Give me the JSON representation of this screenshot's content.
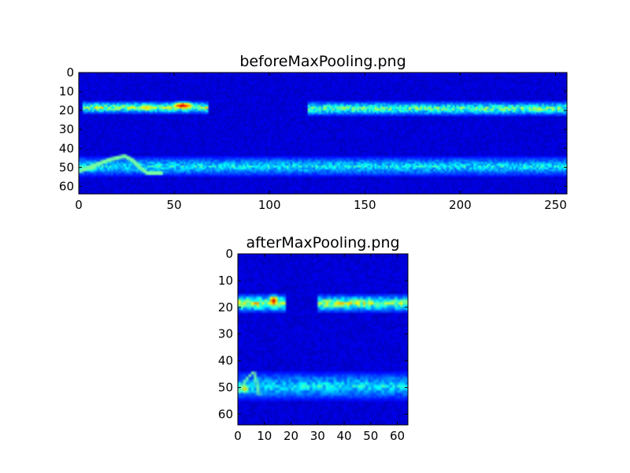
{
  "chart_data": [
    {
      "type": "heatmap",
      "title": "beforeMaxPooling.png",
      "xlabel": "",
      "ylabel": "",
      "xlim": [
        0,
        256
      ],
      "ylim": [
        64,
        0
      ],
      "x_ticks": [
        "0",
        "50",
        "100",
        "150",
        "200",
        "250"
      ],
      "y_ticks": [
        "0",
        "10",
        "20",
        "30",
        "40",
        "50",
        "60"
      ],
      "x_tick_values": [
        0,
        50,
        100,
        150,
        200,
        250
      ],
      "y_tick_values": [
        0,
        10,
        20,
        30,
        40,
        50,
        60
      ],
      "grid": false,
      "colormap": "jet",
      "background": "#00008f",
      "bands": [
        {
          "x": [
            2,
            68
          ],
          "y": [
            15,
            21
          ],
          "level": 0.5
        },
        {
          "x": [
            120,
            256
          ],
          "y": [
            15,
            22
          ],
          "level": 0.45
        },
        {
          "x": [
            0,
            256
          ],
          "y": [
            44,
            54
          ],
          "level": 0.3
        }
      ],
      "hotspots": [
        {
          "x": 54,
          "y": 17,
          "level": 1.0
        },
        {
          "x": 35,
          "y": 18,
          "level": 0.75
        },
        {
          "x": 240,
          "y": 19,
          "level": 0.6
        },
        {
          "x": 5,
          "y": 50,
          "level": 0.6
        }
      ],
      "curve": [
        [
          0,
          52
        ],
        [
          8,
          49
        ],
        [
          16,
          46
        ],
        [
          24,
          44
        ],
        [
          28,
          46
        ],
        [
          32,
          50
        ],
        [
          36,
          53
        ],
        [
          44,
          53
        ]
      ]
    },
    {
      "type": "heatmap",
      "title": "afterMaxPooling.png",
      "xlabel": "",
      "ylabel": "",
      "xlim": [
        0,
        64
      ],
      "ylim": [
        64,
        0
      ],
      "x_ticks": [
        "0",
        "10",
        "20",
        "30",
        "40",
        "50",
        "60"
      ],
      "y_ticks": [
        "0",
        "10",
        "20",
        "30",
        "40",
        "50",
        "60"
      ],
      "x_tick_values": [
        0,
        10,
        20,
        30,
        40,
        50,
        60
      ],
      "y_tick_values": [
        0,
        10,
        20,
        30,
        40,
        50,
        60
      ],
      "grid": false,
      "colormap": "jet",
      "background": "#00008f",
      "bands": [
        {
          "x": [
            0,
            18
          ],
          "y": [
            15,
            21
          ],
          "level": 0.55
        },
        {
          "x": [
            30,
            64
          ],
          "y": [
            15,
            21
          ],
          "level": 0.5
        },
        {
          "x": [
            0,
            64
          ],
          "y": [
            44,
            54
          ],
          "level": 0.3
        }
      ],
      "hotspots": [
        {
          "x": 13,
          "y": 17,
          "level": 1.0
        },
        {
          "x": 37,
          "y": 18,
          "level": 0.7
        },
        {
          "x": 2,
          "y": 50,
          "level": 0.7
        }
      ],
      "curve": [
        [
          0,
          52
        ],
        [
          3,
          47
        ],
        [
          6,
          44
        ],
        [
          7,
          48
        ],
        [
          8,
          53
        ]
      ]
    }
  ]
}
